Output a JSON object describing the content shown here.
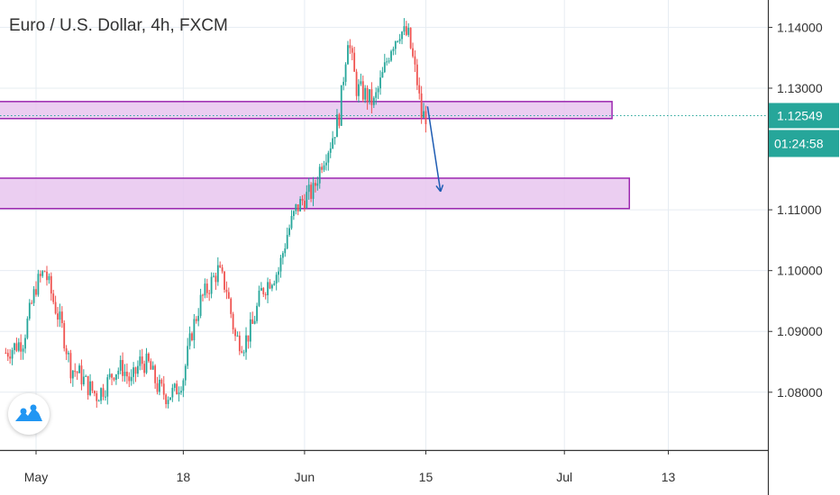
{
  "header": {
    "title": "Euro / U.S. Dollar, 4h, FXCM"
  },
  "chart_data": {
    "type": "candlestick",
    "symbol": "Euro / U.S. Dollar",
    "interval": "4h",
    "source": "FXCM",
    "ylim": [
      1.0705,
      1.1445
    ],
    "y_ticks": [
      "1.14000",
      "1.13000",
      "1.11000",
      "1.10000",
      "1.09000",
      "1.08000"
    ],
    "y_tick_values": [
      1.14,
      1.13,
      1.11,
      1.1,
      1.09,
      1.08
    ],
    "x_ticks": [
      {
        "label": "May",
        "day": 0
      },
      {
        "label": "18",
        "day": 17
      },
      {
        "label": "Jun",
        "day": 31
      },
      {
        "label": "15",
        "day": 45
      },
      {
        "label": "Jul",
        "day": 61
      },
      {
        "label": "13",
        "day": 73
      }
    ],
    "last_price": "1.12549",
    "last_price_value": 1.12549,
    "countdown": "01:24:58",
    "up_color": "#26a69a",
    "down_color": "#ef5350",
    "zone_fill": "#e8c6ef",
    "zone_border": "#9c27b0",
    "zones": [
      {
        "name": "resistance-zone",
        "top": 1.1278,
        "bottom": 1.125,
        "end_day": 66.5
      },
      {
        "name": "support-zone",
        "top": 1.1152,
        "bottom": 1.1102,
        "end_day": 68.5
      }
    ],
    "arrow": {
      "from": [
        45.2,
        1.127
      ],
      "to": [
        46.7,
        1.113
      ],
      "color": "#1e5cb3"
    },
    "trend": [
      [
        -3.5,
        1.0865
      ],
      [
        -1.5,
        1.0885
      ],
      [
        0,
        1.0975
      ],
      [
        1,
        1.1
      ],
      [
        2,
        1.095
      ],
      [
        3,
        1.0905
      ],
      [
        4,
        1.084
      ],
      [
        5,
        1.083
      ],
      [
        6,
        1.081
      ],
      [
        7,
        1.0795
      ],
      [
        8,
        1.081
      ],
      [
        9,
        1.0835
      ],
      [
        10,
        1.084
      ],
      [
        11,
        1.0815
      ],
      [
        12,
        1.085
      ],
      [
        13,
        1.0845
      ],
      [
        14,
        1.081
      ],
      [
        15,
        1.0795
      ],
      [
        16,
        1.08
      ],
      [
        17,
        1.0825
      ],
      [
        18,
        1.09
      ],
      [
        19,
        1.095
      ],
      [
        20,
        1.0975
      ],
      [
        21,
        1.1
      ],
      [
        22,
        1.097
      ],
      [
        23,
        1.089
      ],
      [
        24,
        1.088
      ],
      [
        25,
        1.091
      ],
      [
        26,
        1.0965
      ],
      [
        27,
        1.0985
      ],
      [
        28,
        1.1
      ],
      [
        29,
        1.106
      ],
      [
        30,
        1.11
      ],
      [
        31,
        1.112
      ],
      [
        32,
        1.113
      ],
      [
        33,
        1.118
      ],
      [
        34,
        1.121
      ],
      [
        35,
        1.1255
      ],
      [
        36,
        1.1385
      ],
      [
        37,
        1.13
      ],
      [
        38,
        1.129
      ],
      [
        39,
        1.1275
      ],
      [
        40,
        1.132
      ],
      [
        41,
        1.137
      ],
      [
        42,
        1.1395
      ],
      [
        43,
        1.1385
      ],
      [
        44,
        1.131
      ],
      [
        44.5,
        1.1255
      ],
      [
        45,
        1.1255
      ]
    ]
  }
}
